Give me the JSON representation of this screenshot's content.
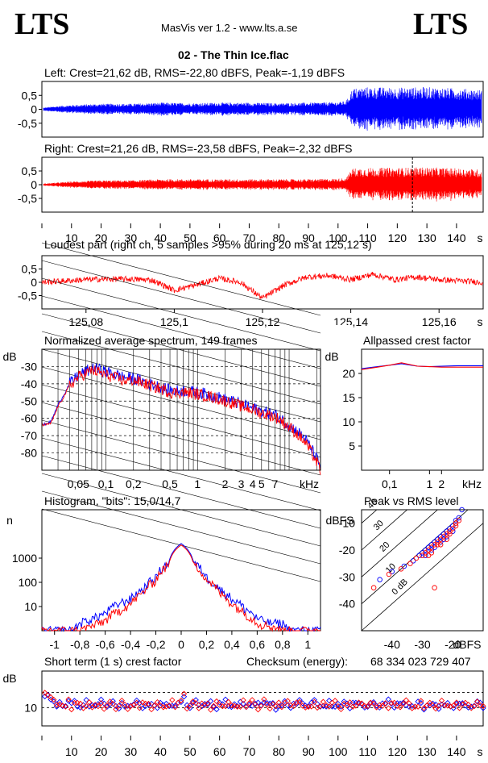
{
  "header": {
    "logo_left": "LTS",
    "logo_right": "LTS",
    "app_title": "MasVis ver 1.2 - www.lts.a.se",
    "file_title": "02 - The Thin Ice.flac"
  },
  "colors": {
    "left": "#0000ff",
    "right": "#ff0000",
    "axis": "#000000"
  },
  "chart_data": [
    {
      "type": "line",
      "id": "left_waveform",
      "title": "Left: Crest=21,62 dB, RMS=-22,80 dBFS, Peak=-1,19 dBFS",
      "ylim": [
        -1,
        1
      ],
      "yticks": [
        "0,5",
        "0",
        "-0,5"
      ],
      "xlim": [
        0,
        149
      ],
      "envelope": {
        "x": [
          0,
          5,
          10,
          20,
          30,
          40,
          50,
          60,
          70,
          80,
          90,
          100,
          103,
          105,
          110,
          120,
          130,
          140,
          149
        ],
        "amp": [
          0.06,
          0.12,
          0.16,
          0.2,
          0.2,
          0.24,
          0.22,
          0.24,
          0.24,
          0.22,
          0.24,
          0.26,
          0.3,
          0.75,
          0.8,
          0.78,
          0.8,
          0.76,
          0.7
        ]
      },
      "series": [
        {
          "name": "",
          "color": "#0000ff"
        }
      ]
    },
    {
      "type": "line",
      "id": "right_waveform",
      "title": "Right: Crest=21,26 dB, RMS=-23,58 dBFS, Peak=-2,32 dBFS",
      "ylim": [
        -1,
        1
      ],
      "yticks": [
        "0,5",
        "0",
        "-0,5"
      ],
      "xlim": [
        0,
        149
      ],
      "marker_x": 125.12,
      "xtick_values": [
        10,
        20,
        30,
        40,
        50,
        60,
        70,
        80,
        90,
        100,
        110,
        120,
        130,
        140
      ],
      "xticks": [
        "10",
        "20",
        "30",
        "40",
        "50",
        "60",
        "70",
        "80",
        "90",
        "100",
        "110",
        "120",
        "130",
        "140",
        "s"
      ],
      "envelope": {
        "x": [
          0,
          5,
          10,
          20,
          30,
          40,
          50,
          60,
          70,
          80,
          90,
          100,
          103,
          105,
          110,
          120,
          130,
          140,
          149
        ],
        "amp": [
          0.04,
          0.08,
          0.12,
          0.16,
          0.16,
          0.2,
          0.2,
          0.2,
          0.2,
          0.2,
          0.2,
          0.22,
          0.26,
          0.6,
          0.62,
          0.62,
          0.64,
          0.6,
          0.56
        ]
      },
      "series": [
        {
          "name": "",
          "color": "#ff0000"
        }
      ]
    },
    {
      "type": "line",
      "id": "loudest_part",
      "title": "Loudest part (right ch, 5 samples >95% during 20 ms at 125,12 s)",
      "ylim": [
        -1,
        1
      ],
      "yticks": [
        "0,5",
        "0",
        "-0,5"
      ],
      "xlim": [
        125.07,
        125.17
      ],
      "xtick_values": [
        125.08,
        125.1,
        125.12,
        125.14,
        125.16
      ],
      "xticks": [
        "125,08",
        "125,1",
        "125,12",
        "125,14",
        "125,16",
        "s"
      ],
      "x": [
        125.07,
        125.075,
        125.08,
        125.085,
        125.09,
        125.095,
        125.1,
        125.105,
        125.11,
        125.115,
        125.12,
        125.125,
        125.13,
        125.135,
        125.14,
        125.145,
        125.15,
        125.155,
        125.16,
        125.165,
        125.17
      ],
      "y": [
        0.0,
        0.05,
        0.1,
        0.12,
        0.12,
        0.08,
        -0.3,
        -0.1,
        0.15,
        0.0,
        -0.6,
        -0.1,
        0.2,
        0.25,
        0.1,
        0.3,
        0.1,
        0.2,
        0.1,
        0.05,
        0.0
      ],
      "series": [
        {
          "name": "",
          "color": "#ff0000"
        }
      ]
    },
    {
      "type": "line",
      "id": "spectrum",
      "title": "Normalized average spectrum, 149 frames",
      "ylabel": "dB",
      "ylim": [
        -90,
        -20
      ],
      "ytick_values": [
        -30,
        -40,
        -50,
        -60,
        -70,
        -80
      ],
      "yticks": [
        "-30",
        "-40",
        "-50",
        "-60",
        "-70",
        "-80"
      ],
      "xlog": true,
      "xlim": [
        0.02,
        22
      ],
      "xtick_values": [
        0.05,
        0.1,
        0.2,
        0.5,
        1,
        2,
        3,
        4,
        5,
        7
      ],
      "xticks": [
        "0,05",
        "0,1",
        "0,2",
        "0,5",
        "1",
        "2",
        "3",
        "4",
        "5",
        "7",
        "kHz"
      ],
      "x": [
        0.02,
        0.025,
        0.03,
        0.04,
        0.05,
        0.07,
        0.1,
        0.15,
        0.2,
        0.3,
        0.5,
        0.7,
        1,
        2,
        3,
        5,
        7,
        10,
        15,
        22
      ],
      "series": [
        {
          "name": "",
          "color": "#0000ff",
          "y": [
            -64,
            -62,
            -52,
            -40,
            -35,
            -31,
            -33,
            -36,
            -37,
            -40,
            -44,
            -44,
            -45,
            -49,
            -52,
            -56,
            -58,
            -64,
            -72,
            -88
          ]
        },
        {
          "name": "",
          "color": "#ff0000",
          "y": [
            -64,
            -63,
            -53,
            -41,
            -36,
            -32,
            -35,
            -38,
            -38,
            -41,
            -45,
            -45,
            -46,
            -50,
            -53,
            -57,
            -59,
            -65,
            -74,
            -90
          ]
        }
      ]
    },
    {
      "type": "line",
      "id": "allpassed_crest",
      "title": "Allpassed crest factor",
      "ylabel": "dB",
      "ylim": [
        0,
        25
      ],
      "ytick_values": [
        20,
        15,
        10,
        5
      ],
      "yticks": [
        "20",
        "15",
        "10",
        "5"
      ],
      "xlog": true,
      "xlim": [
        0.02,
        22
      ],
      "xtick_values": [
        0.1,
        1,
        2
      ],
      "xticks": [
        "0,1",
        "1",
        "2",
        "kHz"
      ],
      "x": [
        0.02,
        0.05,
        0.1,
        0.2,
        0.5,
        1,
        2,
        5,
        10,
        22
      ],
      "series": [
        {
          "name": "",
          "color": "#0000ff",
          "y": [
            21,
            21.4,
            21.7,
            22.0,
            21.5,
            21.4,
            21.5,
            21.6,
            21.6,
            21.6
          ]
        },
        {
          "name": "",
          "color": "#ff0000",
          "y": [
            20.8,
            21.3,
            21.7,
            22.2,
            21.5,
            21.4,
            21.3,
            21.3,
            21.3,
            21.3
          ]
        }
      ]
    },
    {
      "type": "line",
      "id": "histogram",
      "title": "Histogram, \"bits\": 15,0/14,7",
      "ylabel": "n",
      "ylog": true,
      "ylim": [
        1,
        100000
      ],
      "ytick_values": [
        1000,
        100,
        10
      ],
      "yticks": [
        "1000",
        "100",
        "10"
      ],
      "xlim": [
        -1.1,
        1.1
      ],
      "xtick_values": [
        -1,
        -0.8,
        -0.6,
        -0.4,
        -0.2,
        0,
        0.2,
        0.4,
        0.6,
        0.8,
        1
      ],
      "xticks": [
        "-1",
        "-0,8",
        "-0,6",
        "-0,4",
        "-0,2",
        "0",
        "0,2",
        "0,4",
        "0,6",
        "0,8",
        "1"
      ],
      "x": [
        -1.1,
        -0.85,
        -0.8,
        -0.7,
        -0.6,
        -0.5,
        -0.4,
        -0.3,
        -0.2,
        -0.1,
        0,
        0.1,
        0.2,
        0.3,
        0.4,
        0.5,
        0.6,
        0.7,
        0.8,
        0.85,
        1.1
      ],
      "series": [
        {
          "name": "",
          "color": "#0000ff",
          "y": [
            1,
            1,
            2,
            3,
            5,
            12,
            20,
            50,
            150,
            600,
            4000,
            600,
            150,
            50,
            20,
            8,
            3,
            2,
            2,
            1,
            1
          ]
        },
        {
          "name": "",
          "color": "#ff0000",
          "y": [
            1,
            1,
            1,
            1.5,
            2.5,
            6,
            12,
            35,
            120,
            500,
            3500,
            500,
            120,
            35,
            12,
            5,
            2,
            1.5,
            1,
            1,
            1
          ]
        }
      ]
    },
    {
      "type": "scatter",
      "id": "peak_vs_rms",
      "title": "Peak vs RMS level",
      "ylabel": "dBFS",
      "xlabel": "dBFS",
      "xlim": [
        -50,
        -10
      ],
      "ylim": [
        -50,
        -5
      ],
      "xtick_values": [
        -40,
        -30,
        -20
      ],
      "xticks": [
        "-40",
        "-30",
        "-20",
        "dBFS"
      ],
      "ytick_values": [
        -10,
        -20,
        -30,
        -40
      ],
      "yticks": [
        "-10",
        "-20",
        "-30",
        "-40"
      ],
      "diagonals": [
        "40",
        "30",
        "20",
        "10",
        "0 dB"
      ],
      "series": [
        {
          "name": "",
          "color": "#0000ff",
          "points": [
            [
              -44,
              -31
            ],
            [
              -40,
              -28
            ],
            [
              -36,
              -26
            ],
            [
              -33,
              -24
            ],
            [
              -31,
              -22
            ],
            [
              -30,
              -21
            ],
            [
              -29,
              -20
            ],
            [
              -28,
              -19
            ],
            [
              -27,
              -18
            ],
            [
              -26,
              -17
            ],
            [
              -25,
              -16
            ],
            [
              -24,
              -15
            ],
            [
              -23,
              -14
            ],
            [
              -22,
              -13
            ],
            [
              -21,
              -12
            ],
            [
              -20,
              -11
            ],
            [
              -19,
              -9
            ],
            [
              -18,
              -8
            ],
            [
              -26,
              -19
            ],
            [
              -27,
              -20
            ],
            [
              -24,
              -17
            ],
            [
              -22,
              -15
            ],
            [
              -29,
              -22
            ],
            [
              -23,
              -16
            ],
            [
              -20,
              -13
            ],
            [
              -17,
              -5
            ]
          ]
        },
        {
          "name": "",
          "color": "#ff0000",
          "points": [
            [
              -46,
              -34
            ],
            [
              -41,
              -29
            ],
            [
              -37,
              -27
            ],
            [
              -34,
              -25
            ],
            [
              -32,
              -23
            ],
            [
              -30,
              -22
            ],
            [
              -29,
              -21
            ],
            [
              -28,
              -20
            ],
            [
              -27,
              -19
            ],
            [
              -26,
              -18
            ],
            [
              -25,
              -17
            ],
            [
              -24,
              -16
            ],
            [
              -23,
              -15
            ],
            [
              -22,
              -14
            ],
            [
              -21,
              -13
            ],
            [
              -20,
              -12
            ],
            [
              -19,
              -10
            ],
            [
              -18,
              -9
            ],
            [
              -25,
              -18
            ],
            [
              -27,
              -21
            ],
            [
              -24,
              -18
            ],
            [
              -21,
              -14
            ],
            [
              -26,
              -34
            ],
            [
              -28,
              -22
            ],
            [
              -22,
              -16
            ],
            [
              -19,
              -11
            ]
          ]
        }
      ]
    },
    {
      "type": "scatter",
      "id": "short_term_crest",
      "title": "Short term (1 s) crest factor",
      "checksum_label": "Checksum (energy):",
      "checksum_value": "68 334 023 729 407",
      "ylabel": "dB",
      "xlim": [
        0,
        149
      ],
      "ylim": [
        4,
        22
      ],
      "ytick_values": [
        10
      ],
      "yticks": [
        "10"
      ],
      "dashed_y": [
        10,
        15
      ],
      "xtick_values": [
        10,
        20,
        30,
        40,
        50,
        60,
        70,
        80,
        90,
        100,
        110,
        120,
        130,
        140
      ],
      "xticks": [
        "10",
        "20",
        "30",
        "40",
        "50",
        "60",
        "70",
        "80",
        "90",
        "100",
        "110",
        "120",
        "130",
        "140",
        "s"
      ],
      "series": [
        {
          "name": "",
          "color": "#0000ff",
          "y": [
            14,
            15,
            13,
            12,
            11,
            12,
            11,
            10,
            12,
            11,
            12,
            11,
            10,
            11,
            12,
            11,
            11,
            10,
            11,
            12,
            11,
            10,
            11,
            12,
            11,
            10,
            12,
            11,
            11,
            10,
            11,
            12,
            11,
            10,
            11,
            11,
            12,
            11,
            10,
            11,
            11,
            12,
            11,
            10,
            11,
            11,
            12,
            14,
            11,
            10,
            11,
            12,
            11,
            10,
            11,
            11,
            12,
            11,
            10,
            11,
            11,
            12,
            11,
            10,
            11,
            11,
            12,
            11,
            10,
            11,
            11,
            12,
            11,
            10,
            11,
            11,
            12,
            11,
            10,
            11,
            11,
            12,
            11,
            10,
            11,
            11,
            12,
            11,
            10,
            11,
            11,
            12,
            11,
            10,
            11,
            11,
            12,
            11,
            10,
            11,
            11,
            12,
            11,
            10,
            11,
            11,
            12,
            11,
            10,
            11,
            11,
            12,
            11,
            10,
            11,
            11,
            12,
            11,
            10,
            11,
            11,
            12,
            11,
            10,
            11,
            11,
            12,
            11,
            10,
            11,
            11,
            12,
            11,
            10,
            11,
            11,
            12,
            11,
            10,
            11,
            11,
            12,
            11,
            10,
            11,
            11,
            12,
            11,
            10
          ]
        },
        {
          "name": "",
          "color": "#ff0000",
          "y": [
            15,
            14,
            13,
            12,
            11,
            11,
            10,
            11,
            12,
            10,
            11,
            12,
            11,
            10,
            11,
            12,
            10,
            11,
            11,
            12,
            10,
            11,
            12,
            11,
            10,
            11,
            12,
            11,
            10,
            11,
            11,
            12,
            10,
            11,
            12,
            11,
            10,
            11,
            12,
            11,
            10,
            11,
            11,
            12,
            10,
            11,
            12,
            15,
            10,
            11,
            12,
            11,
            10,
            11,
            11,
            12,
            10,
            11,
            12,
            11,
            10,
            11,
            12,
            11,
            10,
            11,
            11,
            12,
            10,
            11,
            12,
            11,
            10,
            11,
            12,
            11,
            10,
            11,
            11,
            12,
            10,
            11,
            12,
            11,
            10,
            11,
            12,
            11,
            10,
            11,
            11,
            12,
            10,
            11,
            12,
            11,
            10,
            11,
            12,
            11,
            10,
            11,
            11,
            12,
            10,
            11,
            12,
            11,
            10,
            11,
            12,
            11,
            10,
            11,
            11,
            12,
            10,
            11,
            12,
            11,
            10,
            11,
            12,
            11,
            10,
            11,
            11,
            12,
            10,
            11,
            12,
            11,
            10,
            11,
            12,
            11,
            10,
            11,
            11,
            12,
            10,
            11,
            12,
            11,
            10,
            11,
            12,
            11,
            10
          ]
        }
      ]
    }
  ]
}
